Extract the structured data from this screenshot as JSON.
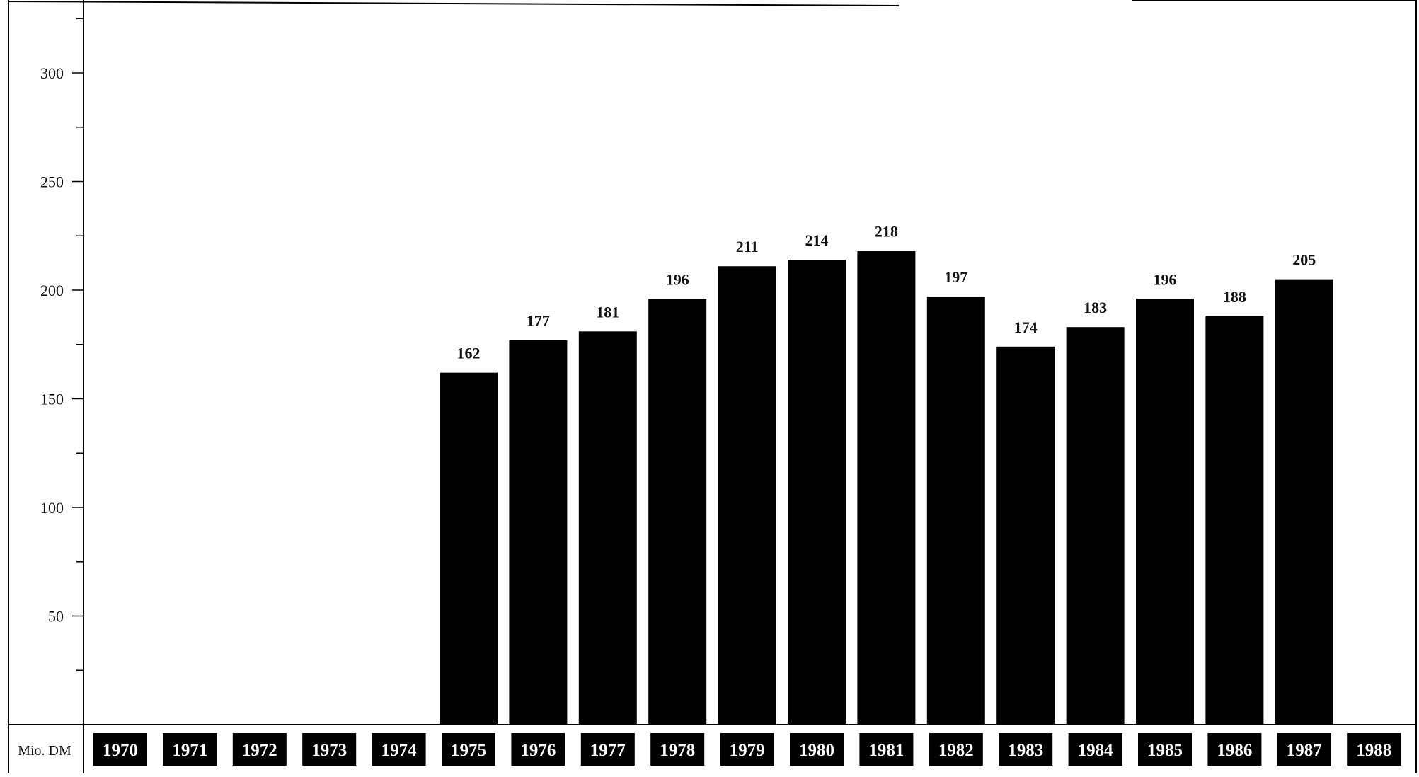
{
  "chart_data": {
    "type": "bar",
    "categories": [
      "1970",
      "1971",
      "1972",
      "1973",
      "1974",
      "1975",
      "1976",
      "1977",
      "1978",
      "1979",
      "1980",
      "1981",
      "1982",
      "1983",
      "1984",
      "1985",
      "1986",
      "1987",
      "1988"
    ],
    "values": [
      null,
      null,
      null,
      null,
      null,
      162,
      177,
      181,
      196,
      211,
      214,
      218,
      197,
      174,
      183,
      196,
      188,
      205,
      null
    ],
    "title": "",
    "xlabel": "",
    "ylabel": "",
    "unit_label": "Mio. DM",
    "ylim": [
      0,
      330
    ],
    "yticks": [
      50,
      100,
      150,
      200,
      250,
      300
    ],
    "grid": false,
    "colors": {
      "bar": "#000000",
      "year_box": "#000000",
      "year_text": "#ffffff",
      "axis": "#000000"
    }
  }
}
